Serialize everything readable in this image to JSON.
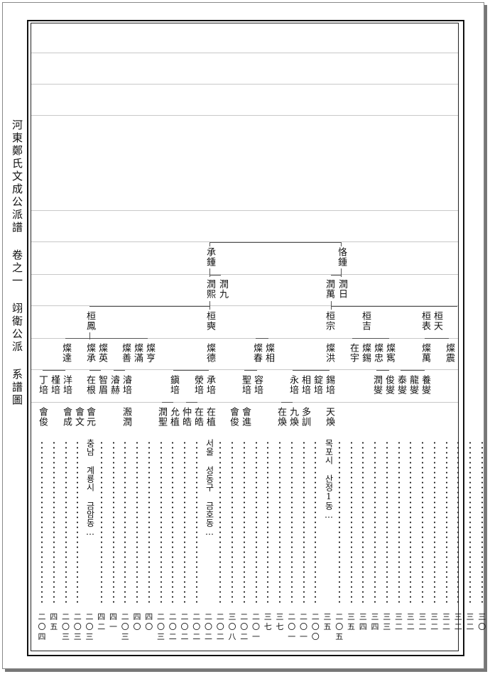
{
  "side_title": "河東鄭氏文成公派譜 卷之一 翊衛公派 系譜圖",
  "gen1": {
    "p1": "承鍾",
    "p2": "恪鍾"
  },
  "gen2": {
    "p1": "潤熙",
    "p2": "潤九",
    "p3": "潤萬",
    "p4": "潤日"
  },
  "gen3": {
    "p1": "桓鳳",
    "p2": "桓奭",
    "p3": "桓宗",
    "p4": "桓吉",
    "p5": "桓表",
    "p6": "桓天"
  },
  "gen4": {
    "p1": "燦達",
    "p2": "燦承",
    "p3": "燦英",
    "p4": "燦善",
    "p5": "燦滿",
    "p6": "燦亨",
    "p7": "燦德",
    "p8": "燦春",
    "p9": "燦相",
    "p10": "燦洪",
    "p11": "在宇",
    "p12": "燦錫",
    "p13": "燦忠",
    "p14": "燦寯",
    "p15": "燦萬",
    "p16": "燦震"
  },
  "gen5": {
    "p1": "丁培",
    "p2": "槿培",
    "p3": "洋培",
    "p4": "在根",
    "p5": "智眉",
    "p6": "濬赫",
    "p7": "濬培",
    "p8": "鎭培",
    "p9": "滎培",
    "p10": "承培",
    "p11": "聖培",
    "p12": "容培",
    "p13": "永培",
    "p14": "相培",
    "p15": "錠培",
    "p16": "錫培",
    "p17": "潤燮",
    "p18": "俊燮",
    "p19": "泰燮",
    "p20": "龍燮",
    "p21": "養燮"
  },
  "gen6": {
    "p1": "會俊",
    "p2": "會成",
    "p3": "會文",
    "p4": "會元",
    "p5": "溵潤",
    "p6": "潤聖",
    "p7": "允植",
    "p8": "仲皓",
    "p9": "在皓",
    "p10": "在植",
    "p11": "會俊",
    "p12": "會進",
    "p13": "在煥",
    "p14": "九煥",
    "p15": "多訓",
    "p16": "天煥"
  },
  "addresses": {
    "a1": "충남 계룡시 금암동…",
    "a2": "서울 성동구 금호동…",
    "a3": "목포시 산정1동…"
  },
  "page_refs": [
    "二〇四",
    "四五",
    "二〇三",
    "二〇三",
    "二〇三",
    "四二",
    "四一",
    "二〇三",
    "四〇",
    "四〇",
    "二〇三",
    "二〇二",
    "二〇二",
    "二〇二",
    "二〇二",
    "二〇二",
    "三〇八",
    "二〇二",
    "二〇一",
    "三七",
    "三七",
    "二〇一",
    "二〇一",
    "二〇〇",
    "三五",
    "二〇五",
    "三五",
    "三四",
    "三四",
    "三三",
    "三二",
    "三二",
    "三二",
    "三二",
    "三二",
    "三二",
    "三二",
    "三〇"
  ]
}
